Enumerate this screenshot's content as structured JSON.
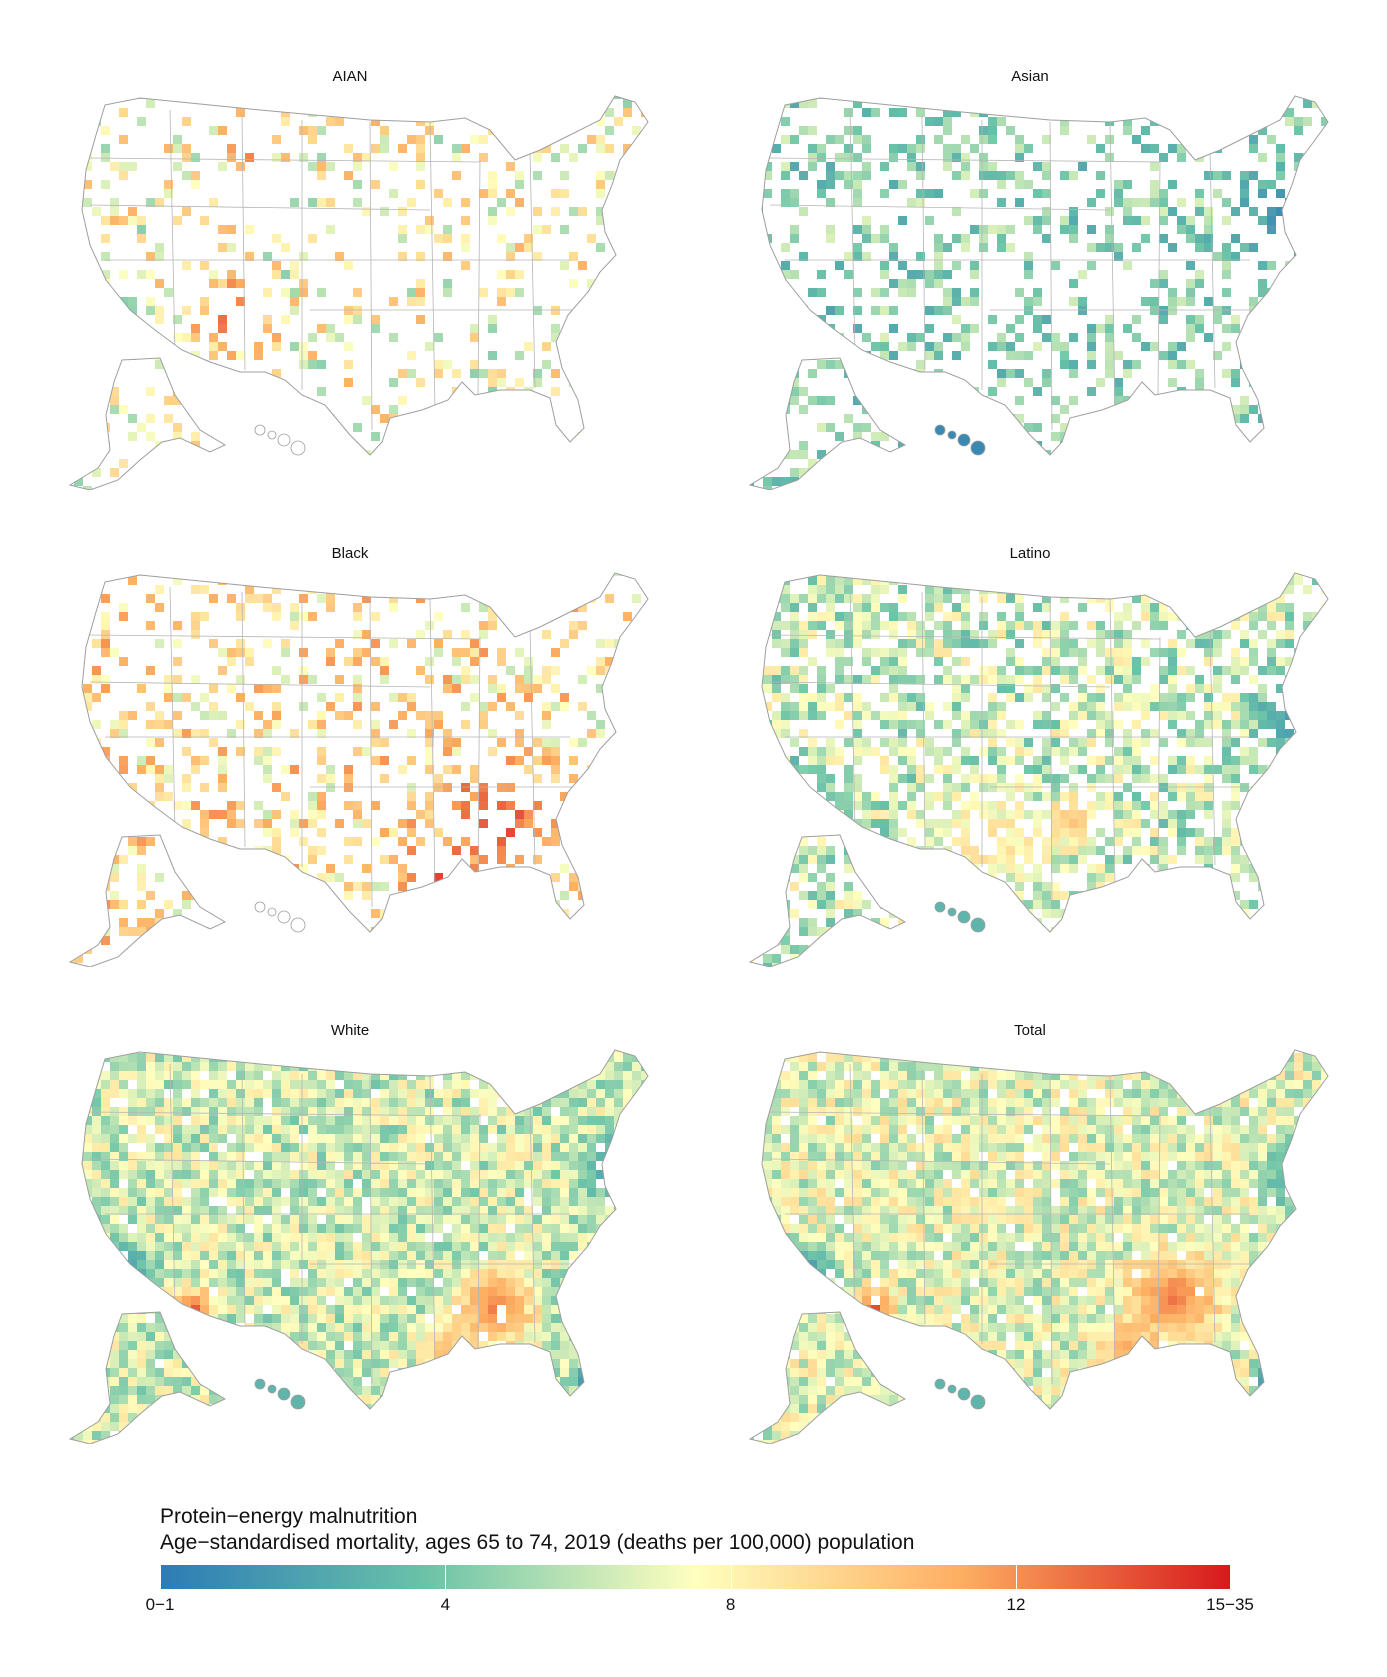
{
  "panels": [
    {
      "title": "AIAN",
      "profile": "aian"
    },
    {
      "title": "Asian",
      "profile": "asian"
    },
    {
      "title": "Black",
      "profile": "black"
    },
    {
      "title": "Latino",
      "profile": "latino"
    },
    {
      "title": "White",
      "profile": "white"
    },
    {
      "title": "Total",
      "profile": "total"
    }
  ],
  "legend": {
    "title_line1": "Protein−energy malnutrition",
    "title_line2": "Age−standardised mortality, ages 65 to 74, 2019 (deaths per 100,000) population",
    "ticks": [
      {
        "label": "0−1",
        "value": 0
      },
      {
        "label": "4",
        "value": 4
      },
      {
        "label": "8",
        "value": 8
      },
      {
        "label": "12",
        "value": 12
      },
      {
        "label": "15−35",
        "value": 15
      }
    ],
    "scale_min": 0,
    "scale_max": 15,
    "colors": [
      "#2c7bb6",
      "#6cc3a8",
      "#ffffbf",
      "#fdae61",
      "#d7191c"
    ]
  }
}
